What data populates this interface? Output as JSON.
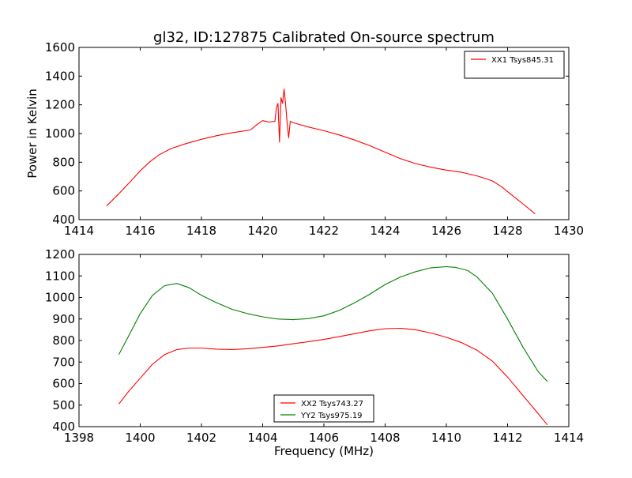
{
  "title": "gl32, ID:127875 Calibrated On-source spectrum",
  "colors": {
    "red": "#ff0000",
    "green": "#008000",
    "axes": "#000000"
  },
  "chart_data": [
    {
      "type": "line",
      "title": "gl32, ID:127875 Calibrated On-source spectrum",
      "xlabel": "",
      "ylabel": "Power in Kelvin",
      "xlim": [
        1414,
        1430
      ],
      "ylim": [
        400,
        1600
      ],
      "xticks": [
        "1414",
        "1416",
        "1418",
        "1420",
        "1422",
        "1424",
        "1426",
        "1428",
        "1430"
      ],
      "yticks": [
        "400",
        "600",
        "800",
        "1000",
        "1200",
        "1400",
        "1600"
      ],
      "grid": false,
      "legend": "top-right",
      "series": [
        {
          "name": "XX1 Tsys845.31",
          "color": "#ff0000",
          "x": [
            1414.9,
            1415.3,
            1415.7,
            1416.0,
            1416.3,
            1416.6,
            1417.0,
            1417.5,
            1418.0,
            1418.5,
            1419.0,
            1419.6,
            1419.8,
            1420.0,
            1420.2,
            1420.4,
            1420.45,
            1420.5,
            1420.55,
            1420.6,
            1420.65,
            1420.7,
            1420.75,
            1420.8,
            1420.85,
            1420.9,
            1421.0,
            1421.5,
            1422.0,
            1422.5,
            1423.0,
            1423.5,
            1424.0,
            1424.5,
            1425.0,
            1425.5,
            1426.0,
            1426.5,
            1427.0,
            1427.5,
            1427.8,
            1428.0,
            1428.5,
            1428.9
          ],
          "y": [
            495,
            580,
            670,
            740,
            800,
            850,
            895,
            930,
            960,
            985,
            1005,
            1025,
            1060,
            1090,
            1080,
            1085,
            1180,
            1210,
            940,
            1250,
            1210,
            1310,
            1200,
            1070,
            970,
            1085,
            1075,
            1045,
            1020,
            990,
            955,
            915,
            870,
            825,
            790,
            765,
            745,
            730,
            705,
            670,
            630,
            595,
            510,
            440
          ]
        }
      ]
    },
    {
      "type": "line",
      "title": "",
      "xlabel": "Frequency (MHz)",
      "ylabel": "",
      "xlim": [
        1398,
        1414
      ],
      "ylim": [
        400,
        1200
      ],
      "xticks": [
        "1398",
        "1400",
        "1402",
        "1404",
        "1406",
        "1408",
        "1410",
        "1412",
        "1414"
      ],
      "yticks": [
        "400",
        "500",
        "600",
        "700",
        "800",
        "900",
        "1000",
        "1100",
        "1200"
      ],
      "grid": false,
      "legend": "bottom-center",
      "series": [
        {
          "name": "XX2 Tsys743.27",
          "color": "#ff0000",
          "x": [
            1399.3,
            1399.6,
            1400.0,
            1400.4,
            1400.8,
            1401.2,
            1401.6,
            1402.0,
            1402.5,
            1403.0,
            1403.5,
            1404.0,
            1404.5,
            1405.0,
            1405.5,
            1406.0,
            1406.5,
            1407.0,
            1407.5,
            1408.0,
            1408.5,
            1409.0,
            1409.5,
            1410.0,
            1410.5,
            1411.0,
            1411.5,
            1412.0,
            1412.5,
            1413.0,
            1413.3
          ],
          "y": [
            505,
            560,
            625,
            690,
            735,
            758,
            765,
            765,
            760,
            758,
            762,
            768,
            775,
            785,
            795,
            805,
            818,
            832,
            845,
            855,
            857,
            850,
            835,
            815,
            790,
            755,
            705,
            630,
            545,
            460,
            408
          ]
        },
        {
          "name": "YY2 Tsys975.19",
          "color": "#008000",
          "x": [
            1399.3,
            1399.6,
            1400.0,
            1400.4,
            1400.8,
            1401.2,
            1401.6,
            1402.0,
            1402.5,
            1403.0,
            1403.5,
            1404.0,
            1404.5,
            1405.0,
            1405.5,
            1406.0,
            1406.5,
            1407.0,
            1407.5,
            1408.0,
            1408.5,
            1409.0,
            1409.5,
            1410.0,
            1410.3,
            1410.7,
            1411.0,
            1411.5,
            1412.0,
            1412.5,
            1413.0,
            1413.3
          ],
          "y": [
            735,
            815,
            925,
            1010,
            1055,
            1065,
            1045,
            1010,
            975,
            945,
            925,
            910,
            900,
            897,
            902,
            915,
            940,
            975,
            1015,
            1060,
            1095,
            1120,
            1138,
            1143,
            1140,
            1125,
            1095,
            1020,
            900,
            770,
            655,
            610
          ]
        }
      ]
    }
  ]
}
